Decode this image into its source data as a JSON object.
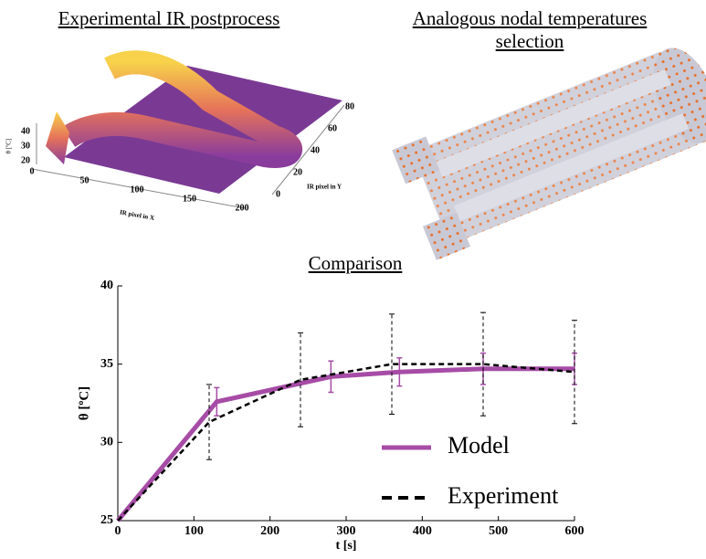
{
  "ir_panel": {
    "title": "Experimental IR postprocess",
    "xlabel": "IR pixel in X",
    "ylabel": "IR pixel in Y",
    "zlabel": "θ [ºC]",
    "xticks": [
      0,
      50,
      100,
      150,
      200
    ],
    "yticks": [
      0,
      20,
      40,
      60,
      80
    ],
    "zticks": [
      20,
      30,
      40
    ]
  },
  "mesh_panel": {
    "title": "Analogous nodal temperatures selection"
  },
  "chart_data": {
    "type": "line",
    "title": "Comparison",
    "xlabel": "t [s]",
    "ylabel": "θ [ºC]",
    "xlim": [
      0,
      600
    ],
    "xticks": [
      0,
      100,
      200,
      300,
      400,
      500,
      600
    ],
    "ylim": [
      25,
      40
    ],
    "yticks": [
      25,
      30,
      35,
      40
    ],
    "legend": "lower right",
    "series": [
      {
        "name": "Model",
        "color": "#a64ca6",
        "style": "solid",
        "x": [
          0,
          130,
          280,
          370,
          480,
          600
        ],
        "values": [
          25,
          32.6,
          34.2,
          34.5,
          34.7,
          34.7
        ],
        "errors": [
          null,
          0.9,
          1.0,
          0.9,
          1.0,
          1.0
        ]
      },
      {
        "name": "Experiment",
        "color": "#000000",
        "style": "dashed",
        "x": [
          0,
          120,
          240,
          360,
          480,
          600
        ],
        "values": [
          25,
          31.3,
          34.0,
          35.0,
          35.0,
          34.5
        ],
        "errors": [
          null,
          2.4,
          3.0,
          3.2,
          3.3,
          3.3
        ]
      }
    ]
  }
}
